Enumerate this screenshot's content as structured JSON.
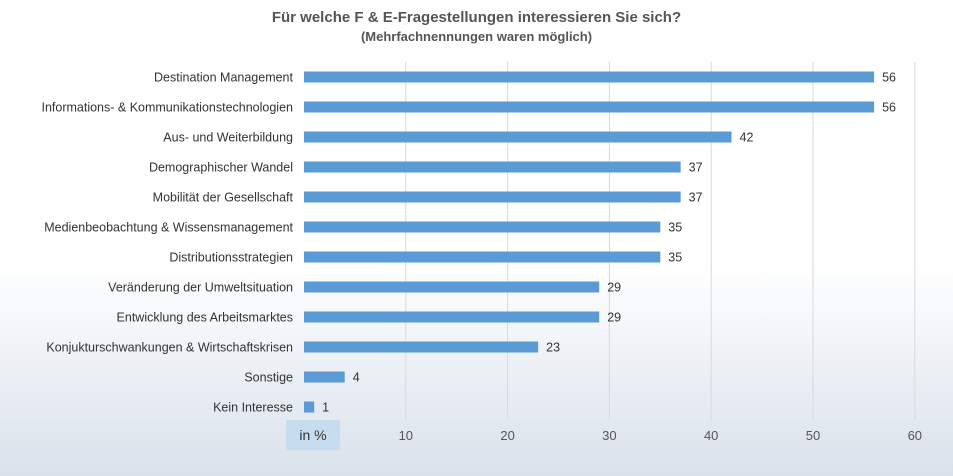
{
  "chart_data": {
    "type": "bar",
    "orientation": "horizontal",
    "title": "Für welche F & E-Fragestellungen interessieren Sie sich?",
    "subtitle": "(Mehrfachnennungen waren möglich)",
    "unit_label": "in %",
    "categories": [
      "Destination Management",
      "Informations- & Kommunikationstechnologien",
      "Aus- und Weiterbildung",
      "Demographischer Wandel",
      "Mobilität der Gesellschaft",
      "Medienbeobachtung & Wissensmanagement",
      "Distributionsstrategien",
      "Veränderung der Umweltsituation",
      "Entwicklung des Arbeitsmarktes",
      "Konjukturschwankungen & Wirtschaftskrisen",
      "Sonstige",
      "Kein Interesse"
    ],
    "values": [
      56,
      56,
      42,
      37,
      37,
      35,
      35,
      29,
      29,
      23,
      4,
      1
    ],
    "xlim": [
      0,
      60
    ],
    "xticks": [
      10,
      20,
      30,
      40,
      50,
      60
    ],
    "grid": true,
    "bar_color": "#5b9bd5",
    "grid_color": "#d9d9d9"
  }
}
